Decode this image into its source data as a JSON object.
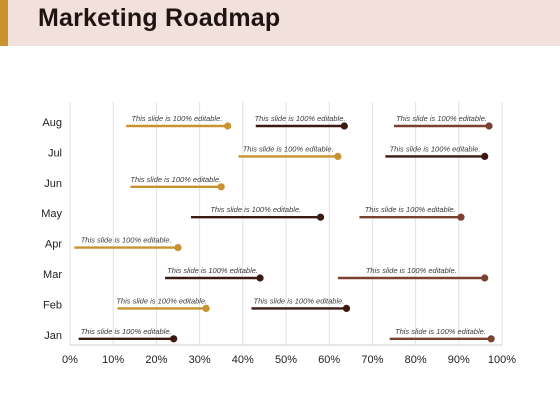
{
  "slide": {
    "title": "Marketing Roadmap"
  },
  "colors": {
    "header_band": "#f2e0dc",
    "accent_bar": "#c8932e",
    "gold": "#c8932e",
    "dark": "#3b1a10",
    "brown": "#7a4030",
    "grid": "#e2e2e2",
    "axis_text": "#222222"
  },
  "chart_data": {
    "type": "range-bar",
    "categories": [
      "Jan",
      "Feb",
      "Mar",
      "Apr",
      "May",
      "Jun",
      "Jul",
      "Aug"
    ],
    "x_ticks": [
      "0%",
      "10%",
      "20%",
      "30%",
      "40%",
      "50%",
      "60%",
      "70%",
      "80%",
      "90%",
      "100%"
    ],
    "xlim": [
      0,
      100
    ],
    "grid": true,
    "segments": [
      {
        "category": "Aug",
        "start": 13,
        "end": 36.5,
        "label": "This slide is 100% editable.",
        "color": "gold"
      },
      {
        "category": "Aug",
        "start": 43,
        "end": 63.5,
        "label": "This slide is 100% editable.",
        "color": "dark"
      },
      {
        "category": "Aug",
        "start": 75,
        "end": 97,
        "label": "This slide is 100% editable.",
        "color": "brown"
      },
      {
        "category": "Jul",
        "start": 39,
        "end": 62,
        "label": "This slide is 100% editable.",
        "color": "gold"
      },
      {
        "category": "Jul",
        "start": 73,
        "end": 96,
        "label": "This slide is 100% editable.",
        "color": "dark"
      },
      {
        "category": "Jun",
        "start": 14,
        "end": 35,
        "label": "This slide is 100% editable.",
        "color": "gold"
      },
      {
        "category": "May",
        "start": 28,
        "end": 58,
        "label": "This slide is 100% editable.",
        "color": "dark"
      },
      {
        "category": "May",
        "start": 67,
        "end": 90.5,
        "label": "This slide is 100% editable.",
        "color": "brown"
      },
      {
        "category": "Apr",
        "start": 1,
        "end": 25,
        "label": "This slide is 100% editable.",
        "color": "gold"
      },
      {
        "category": "Mar",
        "start": 22,
        "end": 44,
        "label": "This slide is 100% editable.",
        "color": "dark"
      },
      {
        "category": "Mar",
        "start": 62,
        "end": 96,
        "label": "This slide is 100% editable.",
        "color": "brown"
      },
      {
        "category": "Feb",
        "start": 11,
        "end": 31.5,
        "label": "This slide is 100% editable.",
        "color": "gold"
      },
      {
        "category": "Feb",
        "start": 42,
        "end": 64,
        "label": "This slide is 100% editable.",
        "color": "dark"
      },
      {
        "category": "Jan",
        "start": 2,
        "end": 24,
        "label": "This slide is 100% editable.",
        "color": "dark"
      },
      {
        "category": "Jan",
        "start": 74,
        "end": 97.5,
        "label": "This slide is 100% editable.",
        "color": "brown"
      }
    ]
  }
}
